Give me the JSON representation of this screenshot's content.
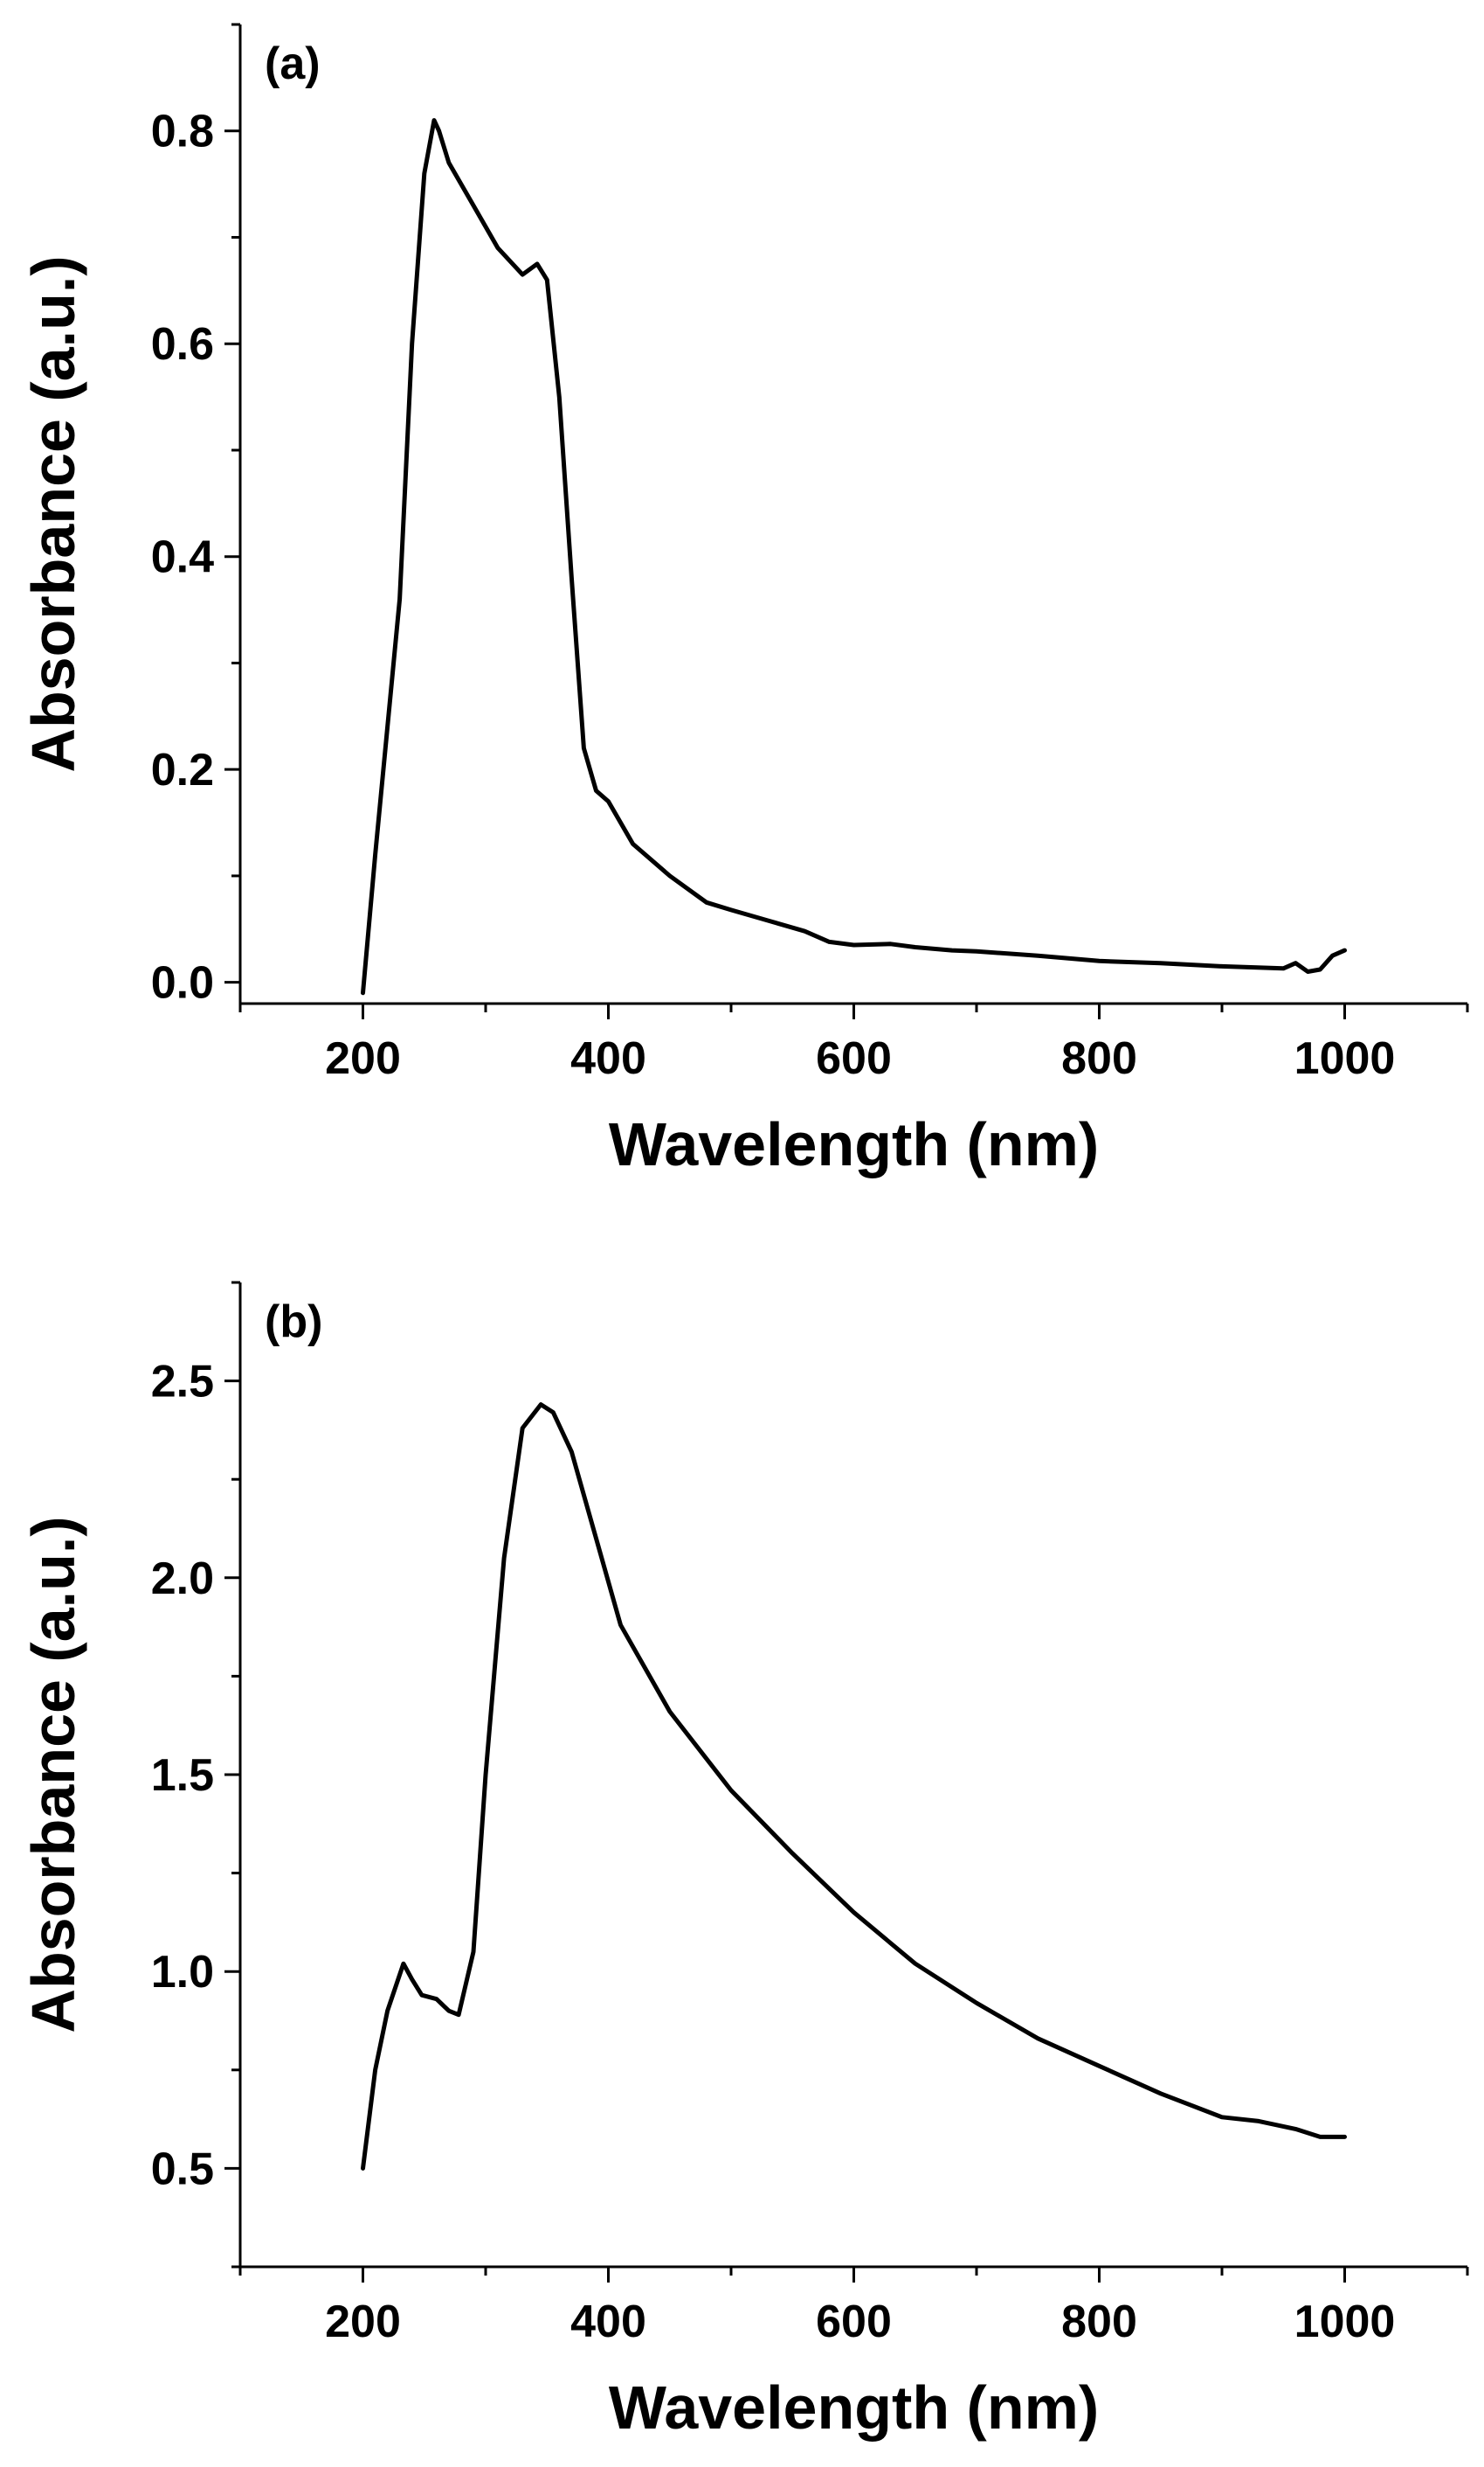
{
  "chart_data": [
    {
      "type": "line",
      "panel_label": "(a)",
      "xlabel": "Wavelength (nm)",
      "ylabel": "Absorbance (a.u.)",
      "xlim": [
        100,
        1100
      ],
      "ylim": [
        -0.02,
        0.9
      ],
      "xticks": [
        200,
        400,
        600,
        800,
        1000
      ],
      "xtick_labels": [
        "200",
        "400",
        "600",
        "800",
        "1000"
      ],
      "yticks": [
        0.0,
        0.2,
        0.4,
        0.6,
        0.8
      ],
      "ytick_labels": [
        "0.0",
        "0.2",
        "0.4",
        "0.6",
        "0.8"
      ],
      "series": [
        {
          "name": "absorbance",
          "x": [
            200,
            210,
            220,
            230,
            240,
            250,
            258,
            262,
            270,
            290,
            310,
            330,
            342,
            350,
            360,
            370,
            380,
            390,
            400,
            420,
            450,
            480,
            500,
            530,
            560,
            580,
            600,
            630,
            650,
            680,
            700,
            750,
            800,
            850,
            900,
            950,
            960,
            970,
            980,
            990,
            1000
          ],
          "y": [
            -0.01,
            0.12,
            0.24,
            0.36,
            0.6,
            0.76,
            0.81,
            0.8,
            0.77,
            0.73,
            0.69,
            0.665,
            0.675,
            0.66,
            0.55,
            0.38,
            0.22,
            0.18,
            0.17,
            0.13,
            0.1,
            0.075,
            0.068,
            0.058,
            0.048,
            0.038,
            0.035,
            0.036,
            0.033,
            0.03,
            0.029,
            0.025,
            0.02,
            0.018,
            0.015,
            0.013,
            0.018,
            0.01,
            0.012,
            0.025,
            0.03
          ]
        }
      ]
    },
    {
      "type": "line",
      "panel_label": "(b)",
      "xlabel": "Wavelength (nm)",
      "ylabel": "Absorbance (a.u.)",
      "xlim": [
        100,
        1100
      ],
      "ylim": [
        0.25,
        2.75
      ],
      "xticks": [
        200,
        400,
        600,
        800,
        1000
      ],
      "xtick_labels": [
        "200",
        "400",
        "600",
        "800",
        "1000"
      ],
      "yticks": [
        0.5,
        1.0,
        1.5,
        2.0,
        2.5
      ],
      "ytick_labels": [
        "0.5",
        "1.0",
        "1.5",
        "2.0",
        "2.5"
      ],
      "series": [
        {
          "name": "absorbance",
          "x": [
            200,
            210,
            220,
            233,
            240,
            248,
            260,
            270,
            278,
            290,
            300,
            315,
            330,
            345,
            355,
            370,
            390,
            410,
            450,
            500,
            550,
            600,
            650,
            700,
            750,
            800,
            850,
            900,
            930,
            960,
            980,
            1000
          ],
          "y": [
            0.5,
            0.75,
            0.9,
            1.02,
            0.98,
            0.94,
            0.93,
            0.9,
            0.89,
            1.05,
            1.5,
            2.05,
            2.38,
            2.44,
            2.42,
            2.32,
            2.1,
            1.88,
            1.66,
            1.46,
            1.3,
            1.15,
            1.02,
            0.92,
            0.83,
            0.76,
            0.69,
            0.63,
            0.62,
            0.6,
            0.58,
            0.58
          ]
        }
      ]
    }
  ]
}
